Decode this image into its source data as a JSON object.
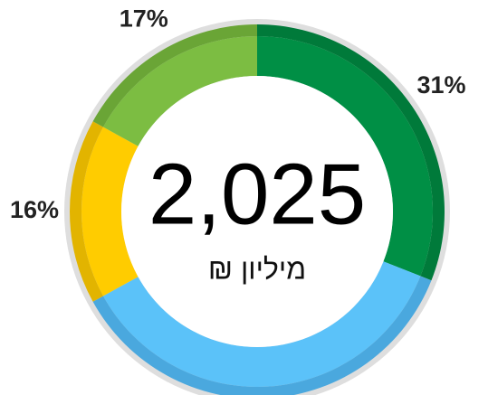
{
  "chart_data": {
    "type": "donut",
    "values": [
      31,
      36,
      16,
      17
    ],
    "value_labels": [
      "31%",
      null,
      "16%",
      "17%"
    ],
    "colors": [
      "#008f45",
      "#5bc2f9",
      "#ffcc00",
      "#7cbd42"
    ],
    "edge_colors": [
      "#007a3a",
      "#4aa8de",
      "#e2b400",
      "#6aa536"
    ],
    "center_value": "2,025",
    "center_unit": "מיליון ₪"
  }
}
